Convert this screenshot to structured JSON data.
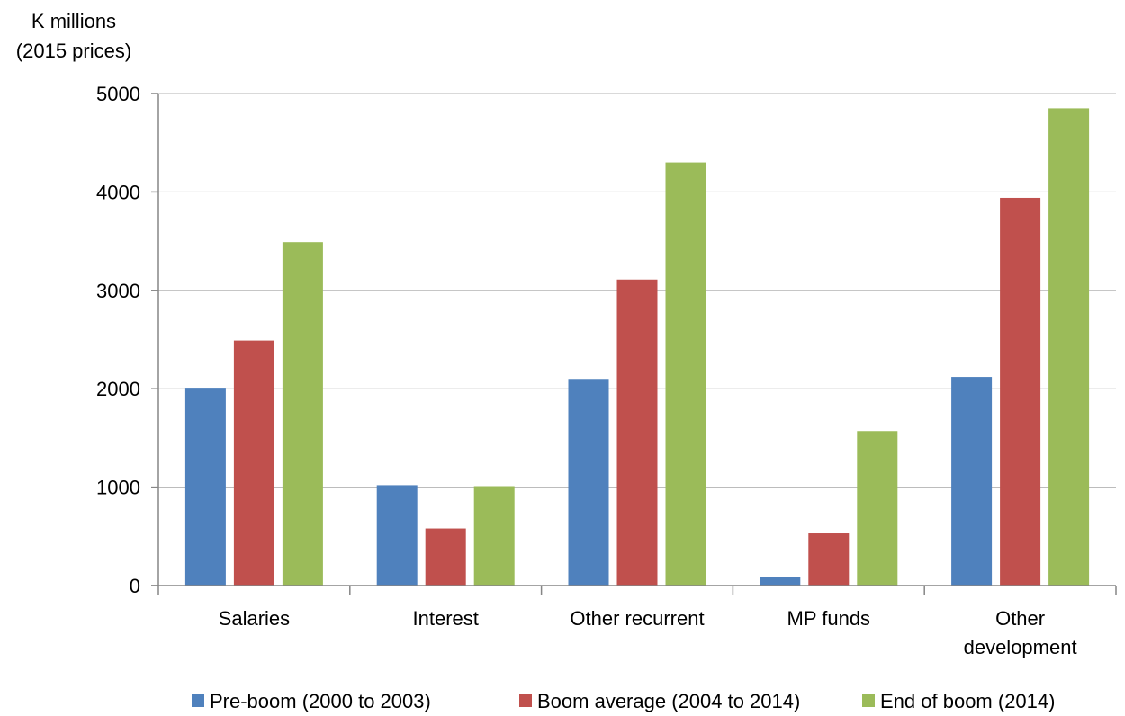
{
  "chart_data": {
    "type": "bar",
    "ylabel_lines": [
      "K millions",
      "(2015 prices)"
    ],
    "categories": [
      [
        "Salaries"
      ],
      [
        "Interest"
      ],
      [
        "Other recurrent"
      ],
      [
        "MP funds"
      ],
      [
        "Other",
        "development"
      ]
    ],
    "series": [
      {
        "name": "Pre-boom (2000 to 2003)",
        "color": "#4f81bd",
        "values": [
          2010,
          1020,
          2100,
          90,
          2120
        ]
      },
      {
        "name": "Boom average (2004 to 2014)",
        "color": "#c0504d",
        "values": [
          2490,
          580,
          3110,
          530,
          3940
        ]
      },
      {
        "name": "End of boom (2014)",
        "color": "#9bbb59",
        "values": [
          3490,
          1010,
          4300,
          1570,
          4850
        ]
      }
    ],
    "ylim": [
      0,
      5000
    ],
    "yticks": [
      0,
      1000,
      2000,
      3000,
      4000,
      5000
    ],
    "grid": true,
    "legend_position": "bottom"
  }
}
